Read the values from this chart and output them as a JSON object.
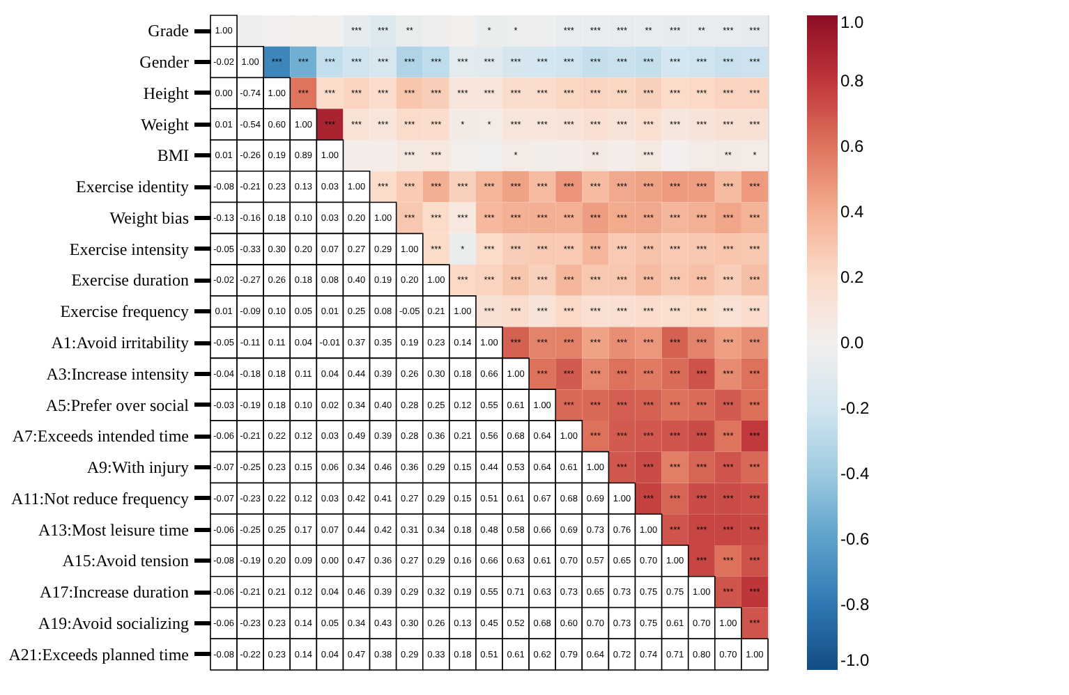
{
  "chart_data": {
    "type": "heatmap",
    "categories": [
      null,
      null,
      null,
      null,
      null,
      null,
      null,
      null,
      null,
      null,
      null,
      null,
      null,
      null,
      null,
      null,
      null,
      null,
      null,
      null,
      null
    ],
    "y_categories": [
      "Grade",
      "Gender",
      "Height",
      "Weight",
      "BMI",
      "Exercise identity",
      "Weight bias",
      "Exercise intensity",
      "Exercise duration",
      "Exercise frequency",
      "A1:Avoid irritability",
      "A3:Increase intensity",
      "A5:Prefer over social",
      "A7:Exceeds intended time",
      "A9:With injury",
      "A11:Not reduce frequency",
      "A13:Most leisure time",
      "A15:Avoid tension",
      "A17:Increase duration",
      "A19:Avoid socializing",
      "A21:Exceeds planned time"
    ],
    "tick_labels": "y",
    "clim": [
      -1,
      1
    ],
    "cticks": [
      {
        "value": 1,
        "label": "1.0"
      },
      {
        "value": 0.8,
        "label": "0.8"
      },
      {
        "value": 0.6,
        "label": "0.6"
      },
      {
        "value": 0.4,
        "label": "0.4"
      },
      {
        "value": 0.2,
        "label": "0.2"
      },
      {
        "value": 0,
        "label": "0.0"
      },
      {
        "value": -0.2,
        "label": "-0.2"
      },
      {
        "value": -0.4,
        "label": "-0.4"
      },
      {
        "value": -0.6,
        "label": "-0.6"
      },
      {
        "value": -0.8,
        "label": "-0.8"
      },
      {
        "value": -1,
        "label": "-1.0"
      }
    ],
    "cells": [
      [
        null,
        -0.02,
        0.0,
        0.01,
        0.01,
        -0.08,
        -0.13,
        -0.05,
        -0.02,
        0.01,
        -0.05,
        -0.04,
        -0.03,
        -0.06,
        -0.07,
        -0.07,
        -0.06,
        -0.08,
        -0.06,
        -0.06,
        -0.08
      ],
      [
        null,
        null,
        -0.74,
        -0.54,
        -0.26,
        -0.21,
        -0.16,
        -0.33,
        -0.27,
        -0.09,
        -0.11,
        -0.18,
        -0.19,
        -0.21,
        -0.25,
        -0.23,
        -0.25,
        -0.19,
        -0.21,
        -0.23,
        -0.22
      ],
      [
        null,
        null,
        null,
        0.6,
        0.19,
        0.23,
        0.18,
        0.3,
        0.26,
        0.1,
        0.11,
        0.18,
        0.18,
        0.22,
        0.23,
        0.22,
        0.25,
        0.2,
        0.21,
        0.23,
        0.23
      ],
      [
        null,
        null,
        null,
        null,
        0.89,
        0.13,
        0.1,
        0.2,
        0.18,
        0.05,
        0.04,
        0.11,
        0.1,
        0.12,
        0.15,
        0.12,
        0.17,
        0.09,
        0.12,
        0.14,
        0.14
      ],
      [
        null,
        null,
        null,
        null,
        null,
        0.03,
        0.03,
        0.07,
        0.08,
        0.01,
        -0.01,
        0.04,
        0.02,
        0.03,
        0.06,
        0.03,
        0.07,
        0.0,
        0.04,
        0.05,
        0.04
      ],
      [
        null,
        null,
        null,
        null,
        null,
        null,
        0.2,
        0.27,
        0.4,
        0.25,
        0.37,
        0.44,
        0.34,
        0.49,
        0.34,
        0.42,
        0.44,
        0.47,
        0.46,
        0.34,
        0.47
      ],
      [
        null,
        null,
        null,
        null,
        null,
        null,
        null,
        0.29,
        0.19,
        0.08,
        0.35,
        0.39,
        0.4,
        0.39,
        0.46,
        0.41,
        0.42,
        0.36,
        0.39,
        0.43,
        0.38
      ],
      [
        null,
        null,
        null,
        null,
        null,
        null,
        null,
        null,
        0.2,
        -0.05,
        0.19,
        0.26,
        0.28,
        0.28,
        0.36,
        0.27,
        0.31,
        0.27,
        0.29,
        0.3,
        0.29
      ],
      [
        null,
        null,
        null,
        null,
        null,
        null,
        null,
        null,
        null,
        0.21,
        0.23,
        0.3,
        0.25,
        0.36,
        0.29,
        0.29,
        0.34,
        0.29,
        0.32,
        0.26,
        0.33
      ],
      [
        null,
        null,
        null,
        null,
        null,
        null,
        null,
        null,
        null,
        null,
        0.14,
        0.18,
        0.12,
        0.21,
        0.15,
        0.15,
        0.18,
        0.16,
        0.19,
        0.13,
        0.18
      ],
      [
        null,
        null,
        null,
        null,
        null,
        null,
        null,
        null,
        null,
        null,
        null,
        0.66,
        0.55,
        0.56,
        0.44,
        0.51,
        0.48,
        0.66,
        0.55,
        0.45,
        0.51
      ],
      [
        null,
        null,
        null,
        null,
        null,
        null,
        null,
        null,
        null,
        null,
        null,
        null,
        0.61,
        0.68,
        0.53,
        0.61,
        0.58,
        0.63,
        0.71,
        0.52,
        0.61
      ],
      [
        null,
        null,
        null,
        null,
        null,
        null,
        null,
        null,
        null,
        null,
        null,
        null,
        null,
        0.64,
        0.64,
        0.67,
        0.66,
        0.61,
        0.63,
        0.68,
        0.62
      ],
      [
        null,
        null,
        null,
        null,
        null,
        null,
        null,
        null,
        null,
        null,
        null,
        null,
        null,
        null,
        0.61,
        0.68,
        0.69,
        0.7,
        0.73,
        0.6,
        0.79
      ],
      [
        null,
        null,
        null,
        null,
        null,
        null,
        null,
        null,
        null,
        null,
        null,
        null,
        null,
        null,
        null,
        0.69,
        0.73,
        0.57,
        0.65,
        0.7,
        0.64
      ],
      [
        null,
        null,
        null,
        null,
        null,
        null,
        null,
        null,
        null,
        null,
        null,
        null,
        null,
        null,
        null,
        null,
        0.76,
        0.65,
        0.73,
        0.73,
        0.72
      ],
      [
        null,
        null,
        null,
        null,
        null,
        null,
        null,
        null,
        null,
        null,
        null,
        null,
        null,
        null,
        null,
        null,
        null,
        0.7,
        0.75,
        0.75,
        0.74
      ],
      [
        null,
        null,
        null,
        null,
        null,
        null,
        null,
        null,
        null,
        null,
        null,
        null,
        null,
        null,
        null,
        null,
        null,
        null,
        0.75,
        0.61,
        0.71
      ],
      [
        null,
        null,
        null,
        null,
        null,
        null,
        null,
        null,
        null,
        null,
        null,
        null,
        null,
        null,
        null,
        null,
        null,
        null,
        null,
        0.7,
        0.8
      ],
      [
        null,
        null,
        null,
        null,
        null,
        null,
        null,
        null,
        null,
        null,
        null,
        null,
        null,
        null,
        null,
        null,
        null,
        null,
        null,
        null,
        0.7
      ],
      [
        null,
        null,
        null,
        null,
        null,
        null,
        null,
        null,
        null,
        null,
        null,
        null,
        null,
        null,
        null,
        null,
        null,
        null,
        null,
        null,
        null
      ]
    ],
    "cell_labels": [
      [
        "1.00",
        null,
        null,
        null,
        null,
        "***",
        "***",
        "**",
        null,
        null,
        "*",
        "*",
        null,
        "***",
        "***",
        "***",
        "**",
        "***",
        "**",
        "***",
        "***"
      ],
      [
        "-0.02",
        "1.00",
        "***",
        "***",
        "***",
        "***",
        "***",
        "***",
        "***",
        "***",
        "***",
        "***",
        "***",
        "***",
        "***",
        "***",
        "***",
        "***",
        "***",
        "***",
        "***"
      ],
      [
        "0.00",
        "-0.74",
        "1.00",
        "***",
        "***",
        "***",
        "***",
        "***",
        "***",
        "***",
        "***",
        "***",
        "***",
        "***",
        "***",
        "***",
        "***",
        "***",
        "***",
        "***",
        "***"
      ],
      [
        "0.01",
        "-0.54",
        "0.60",
        "1.00",
        "***",
        "***",
        "***",
        "***",
        "***",
        "*",
        "*",
        "***",
        "***",
        "***",
        "***",
        "***",
        "***",
        "***",
        "***",
        "***",
        "***"
      ],
      [
        "0.01",
        "-0.26",
        "0.19",
        "0.89",
        "1.00",
        null,
        null,
        "***",
        "***",
        null,
        null,
        "*",
        null,
        null,
        "**",
        null,
        "***",
        null,
        null,
        "**",
        "*"
      ],
      [
        "-0.08",
        "-0.21",
        "0.23",
        "0.13",
        "0.03",
        "1.00",
        "***",
        "***",
        "***",
        "***",
        "***",
        "***",
        "***",
        "***",
        "***",
        "***",
        "***",
        "***",
        "***",
        "***",
        "***"
      ],
      [
        "-0.13",
        "-0.16",
        "0.18",
        "0.10",
        "0.03",
        "0.20",
        "1.00",
        "***",
        "***",
        "***",
        "***",
        "***",
        "***",
        "***",
        "***",
        "***",
        "***",
        "***",
        "***",
        "***",
        "***"
      ],
      [
        "-0.05",
        "-0.33",
        "0.30",
        "0.20",
        "0.07",
        "0.27",
        "0.29",
        "1.00",
        "***",
        "*",
        "***",
        "***",
        "***",
        "***",
        "***",
        "***",
        "***",
        "***",
        "***",
        "***",
        "***"
      ],
      [
        "-0.02",
        "-0.27",
        "0.26",
        "0.18",
        "0.08",
        "0.40",
        "0.19",
        "0.20",
        "1.00",
        "***",
        "***",
        "***",
        "***",
        "***",
        "***",
        "***",
        "***",
        "***",
        "***",
        "***",
        "***"
      ],
      [
        "0.01",
        "-0.09",
        "0.10",
        "0.05",
        "0.01",
        "0.25",
        "0.08",
        "-0.05",
        "0.21",
        "1.00",
        "***",
        "***",
        "***",
        "***",
        "***",
        "***",
        "***",
        "***",
        "***",
        "***",
        "***"
      ],
      [
        "-0.05",
        "-0.11",
        "0.11",
        "0.04",
        "-0.01",
        "0.37",
        "0.35",
        "0.19",
        "0.23",
        "0.14",
        "1.00",
        "***",
        "***",
        "***",
        "***",
        "***",
        "***",
        "***",
        "***",
        "***",
        "***"
      ],
      [
        "-0.04",
        "-0.18",
        "0.18",
        "0.11",
        "0.04",
        "0.44",
        "0.39",
        "0.26",
        "0.30",
        "0.18",
        "0.66",
        "1.00",
        "***",
        "***",
        "***",
        "***",
        "***",
        "***",
        "***",
        "***",
        "***"
      ],
      [
        "-0.03",
        "-0.19",
        "0.18",
        "0.10",
        "0.02",
        "0.34",
        "0.40",
        "0.28",
        "0.25",
        "0.12",
        "0.55",
        "0.61",
        "1.00",
        "***",
        "***",
        "***",
        "***",
        "***",
        "***",
        "***",
        "***"
      ],
      [
        "-0.06",
        "-0.21",
        "0.22",
        "0.12",
        "0.03",
        "0.49",
        "0.39",
        "0.28",
        "0.36",
        "0.21",
        "0.56",
        "0.68",
        "0.64",
        "1.00",
        "***",
        "***",
        "***",
        "***",
        "***",
        "***",
        "***"
      ],
      [
        "-0.07",
        "-0.25",
        "0.23",
        "0.15",
        "0.06",
        "0.34",
        "0.46",
        "0.36",
        "0.29",
        "0.15",
        "0.44",
        "0.53",
        "0.64",
        "0.61",
        "1.00",
        "***",
        "***",
        "***",
        "***",
        "***",
        "***"
      ],
      [
        "-0.07",
        "-0.23",
        "0.22",
        "0.12",
        "0.03",
        "0.42",
        "0.41",
        "0.27",
        "0.29",
        "0.15",
        "0.51",
        "0.61",
        "0.67",
        "0.68",
        "0.69",
        "1.00",
        "***",
        "***",
        "***",
        "***",
        "***"
      ],
      [
        "-0.06",
        "-0.25",
        "0.25",
        "0.17",
        "0.07",
        "0.44",
        "0.42",
        "0.31",
        "0.34",
        "0.18",
        "0.48",
        "0.58",
        "0.66",
        "0.69",
        "0.73",
        "0.76",
        "1.00",
        "***",
        "***",
        "***",
        "***"
      ],
      [
        "-0.08",
        "-0.19",
        "0.20",
        "0.09",
        "0.00",
        "0.47",
        "0.36",
        "0.27",
        "0.29",
        "0.16",
        "0.66",
        "0.63",
        "0.61",
        "0.70",
        "0.57",
        "0.65",
        "0.70",
        "1.00",
        "***",
        "***",
        "***"
      ],
      [
        "-0.06",
        "-0.21",
        "0.21",
        "0.12",
        "0.04",
        "0.46",
        "0.39",
        "0.29",
        "0.32",
        "0.19",
        "0.55",
        "0.71",
        "0.63",
        "0.73",
        "0.65",
        "0.73",
        "0.75",
        "0.75",
        "1.00",
        "***",
        "***"
      ],
      [
        "-0.06",
        "-0.23",
        "0.23",
        "0.14",
        "0.05",
        "0.34",
        "0.43",
        "0.30",
        "0.26",
        "0.13",
        "0.45",
        "0.52",
        "0.68",
        "0.60",
        "0.70",
        "0.73",
        "0.75",
        "0.61",
        "0.70",
        "1.00",
        "***"
      ],
      [
        "-0.08",
        "-0.22",
        "0.23",
        "0.14",
        "0.04",
        "0.47",
        "0.38",
        "0.29",
        "0.33",
        "0.18",
        "0.51",
        "0.61",
        "0.62",
        "0.79",
        "0.64",
        "0.72",
        "0.74",
        "0.71",
        "0.80",
        "0.70",
        "1.00"
      ]
    ]
  }
}
